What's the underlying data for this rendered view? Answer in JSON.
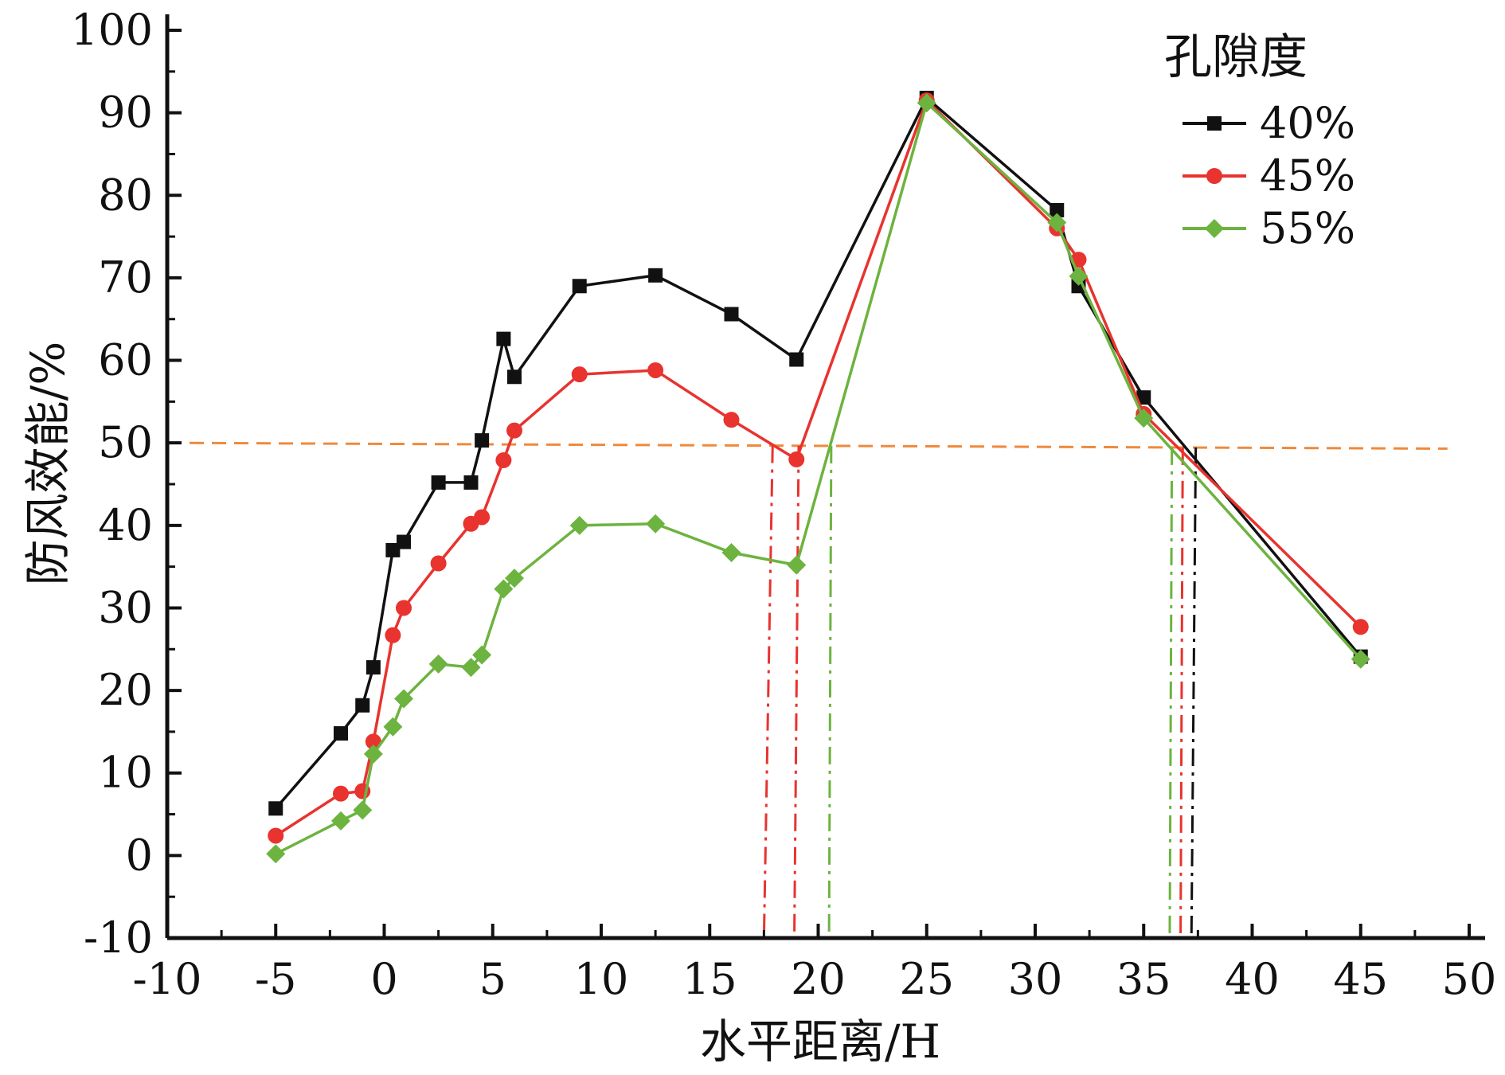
{
  "chart_data": {
    "type": "line",
    "xlabel": "水平距离/H",
    "ylabel": "防风效能/%",
    "xlim": [
      -10,
      50
    ],
    "ylim": [
      -10,
      100
    ],
    "xticks": [
      -10,
      -5,
      0,
      5,
      10,
      15,
      20,
      25,
      30,
      35,
      40,
      45,
      50
    ],
    "yticks": [
      -10,
      0,
      10,
      20,
      30,
      40,
      50,
      60,
      70,
      80,
      90,
      100
    ],
    "grid": false,
    "legend": {
      "title": "孔隙度",
      "placement": "top-right"
    },
    "series": [
      {
        "name": "40%",
        "color": "#111111",
        "marker": "square",
        "x": [
          -5,
          -2,
          -1,
          -0.5,
          0.4,
          0.9,
          2.5,
          4,
          4.5,
          5.5,
          6,
          9,
          12.5,
          16,
          19,
          25,
          31,
          32,
          35,
          45
        ],
        "y": [
          5.7,
          14.8,
          18.2,
          22.8,
          37,
          38,
          45.2,
          45.2,
          50.3,
          62.6,
          58,
          69,
          70.3,
          65.6,
          60.1,
          91.8,
          78.2,
          69,
          55.5,
          24.1
        ]
      },
      {
        "name": "45%",
        "color": "#e8332f",
        "marker": "circle",
        "x": [
          -5,
          -2,
          -1,
          -0.5,
          0.4,
          0.9,
          2.5,
          4,
          4.5,
          5.5,
          6,
          9,
          12.5,
          16,
          19,
          25,
          31,
          32,
          35,
          45
        ],
        "y": [
          2.4,
          7.5,
          7.8,
          13.8,
          26.7,
          30,
          35.4,
          40.2,
          41,
          47.9,
          51.5,
          58.3,
          58.8,
          52.8,
          48,
          91.5,
          76,
          72.2,
          53.5,
          27.7
        ]
      },
      {
        "name": "55%",
        "color": "#6db33f",
        "marker": "diamond",
        "x": [
          -5,
          -2,
          -1,
          -0.5,
          0.4,
          0.9,
          2.5,
          4,
          4.5,
          5.5,
          6,
          9,
          12.5,
          16,
          19,
          25,
          31,
          32,
          35,
          45
        ],
        "y": [
          0.2,
          4.2,
          5.5,
          12.3,
          15.6,
          19,
          23.2,
          22.8,
          24.3,
          32.3,
          33.6,
          40,
          40.2,
          36.7,
          35.2,
          91.2,
          76.7,
          70.2,
          53,
          23.8
        ]
      }
    ],
    "reference_line": {
      "y_start": 50,
      "y_end": 49.3,
      "x_start": -10,
      "x_end": 49,
      "color": "#ef8a3c",
      "style": "dashed"
    },
    "crossing_lines": [
      {
        "x": 17.5,
        "x_top": 17.9,
        "color": "#e8332f",
        "style": "dashdot"
      },
      {
        "x": 18.9,
        "x_top": 19.1,
        "color": "#e8332f",
        "style": "dashdot"
      },
      {
        "x": 20.5,
        "x_top": 20.6,
        "color": "#6db33f",
        "style": "dashdot"
      },
      {
        "x": 36.2,
        "x_top": 36.3,
        "color": "#6db33f",
        "style": "dashdot"
      },
      {
        "x": 36.7,
        "x_top": 36.8,
        "color": "#e8332f",
        "style": "dashdot"
      },
      {
        "x": 37.2,
        "x_top": 37.4,
        "color": "#111111",
        "style": "dashdot"
      }
    ]
  }
}
